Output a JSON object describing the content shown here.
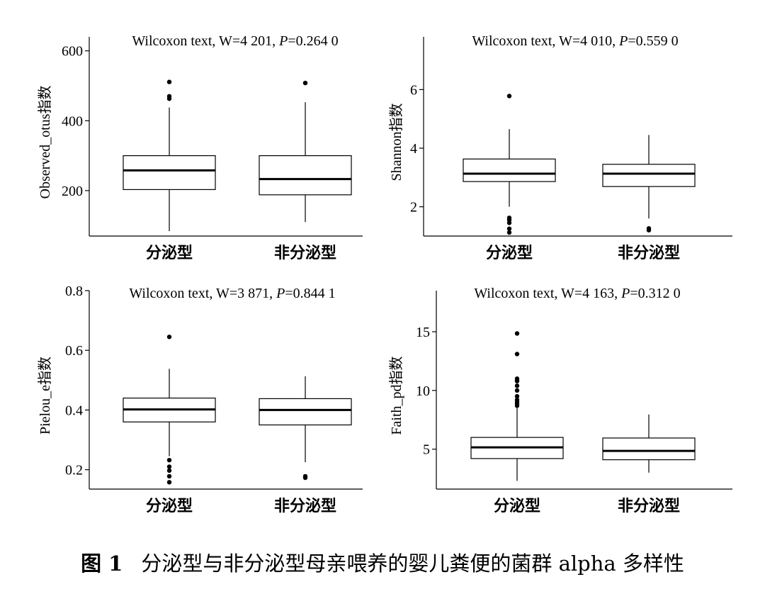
{
  "figure": {
    "number": "图 1",
    "caption": "分泌型与非分泌型母亲喂养的婴儿粪便的菌群 alpha 多样性"
  },
  "chart_data": [
    {
      "type": "box",
      "title_prefix": "Wilcoxon text, W=4 201, ",
      "title_p": "P",
      "title_suffix": "=0.264 0",
      "ylabel": "Observed_otus指数",
      "categories": [
        "分泌型",
        "非分泌型"
      ],
      "yticks": [
        200,
        400,
        600
      ],
      "ylim": [
        70,
        640
      ],
      "boxes": [
        {
          "min": 84,
          "q1": 203,
          "median": 258,
          "q3": 300,
          "max": 438,
          "outliers": [
            463,
            470,
            511
          ]
        },
        {
          "min": 110,
          "q1": 188,
          "median": 233,
          "q3": 300,
          "max": 453,
          "outliers": [
            508
          ]
        }
      ]
    },
    {
      "type": "box",
      "title_prefix": "Wilcoxon text, W=4 010, ",
      "title_p": "P",
      "title_suffix": "=0.559 0",
      "ylabel": "Shannon指数",
      "categories": [
        "分泌型",
        "非分泌型"
      ],
      "yticks": [
        2,
        4,
        6
      ],
      "ylim": [
        1.0,
        7.8
      ],
      "boxes": [
        {
          "min": 2.0,
          "q1": 2.86,
          "median": 3.13,
          "q3": 3.63,
          "max": 4.65,
          "outliers": [
            1.12,
            1.25,
            1.45,
            1.55,
            1.62,
            5.78
          ]
        },
        {
          "min": 1.6,
          "q1": 2.69,
          "median": 3.13,
          "q3": 3.45,
          "max": 4.45,
          "outliers": [
            1.2,
            1.26
          ]
        }
      ]
    },
    {
      "type": "box",
      "title_prefix": "Wilcoxon text, W=3 871, ",
      "title_p": "P",
      "title_suffix": "=0.844 1",
      "ylabel": "Pielou_e指数",
      "categories": [
        "分泌型",
        "非分泌型"
      ],
      "yticks": [
        0.2,
        0.4,
        0.6,
        0.8
      ],
      "ylim": [
        0.135,
        0.8
      ],
      "boxes": [
        {
          "min": 0.245,
          "q1": 0.36,
          "median": 0.402,
          "q3": 0.44,
          "max": 0.538,
          "outliers": [
            0.158,
            0.178,
            0.197,
            0.21,
            0.232,
            0.645
          ]
        },
        {
          "min": 0.225,
          "q1": 0.35,
          "median": 0.4,
          "q3": 0.438,
          "max": 0.513,
          "outliers": [
            0.173,
            0.178
          ]
        }
      ]
    },
    {
      "type": "box",
      "title_prefix": "Wilcoxon text, W=4 163, ",
      "title_p": "P",
      "title_suffix": "=0.312 0",
      "ylabel": "Faith_pd指数",
      "categories": [
        "分泌型",
        "非分泌型"
      ],
      "yticks": [
        5,
        10,
        15
      ],
      "ylim": [
        1.6,
        18.5
      ],
      "boxes": [
        {
          "min": 2.3,
          "q1": 4.2,
          "median": 5.15,
          "q3": 6.0,
          "max": 8.5,
          "outliers": [
            8.7,
            8.85,
            9.0,
            9.2,
            9.5,
            10.0,
            10.4,
            10.8,
            11.0,
            13.1,
            14.85
          ]
        },
        {
          "min": 3.0,
          "q1": 4.1,
          "median": 4.85,
          "q3": 5.95,
          "max": 7.95,
          "outliers": []
        }
      ]
    }
  ]
}
